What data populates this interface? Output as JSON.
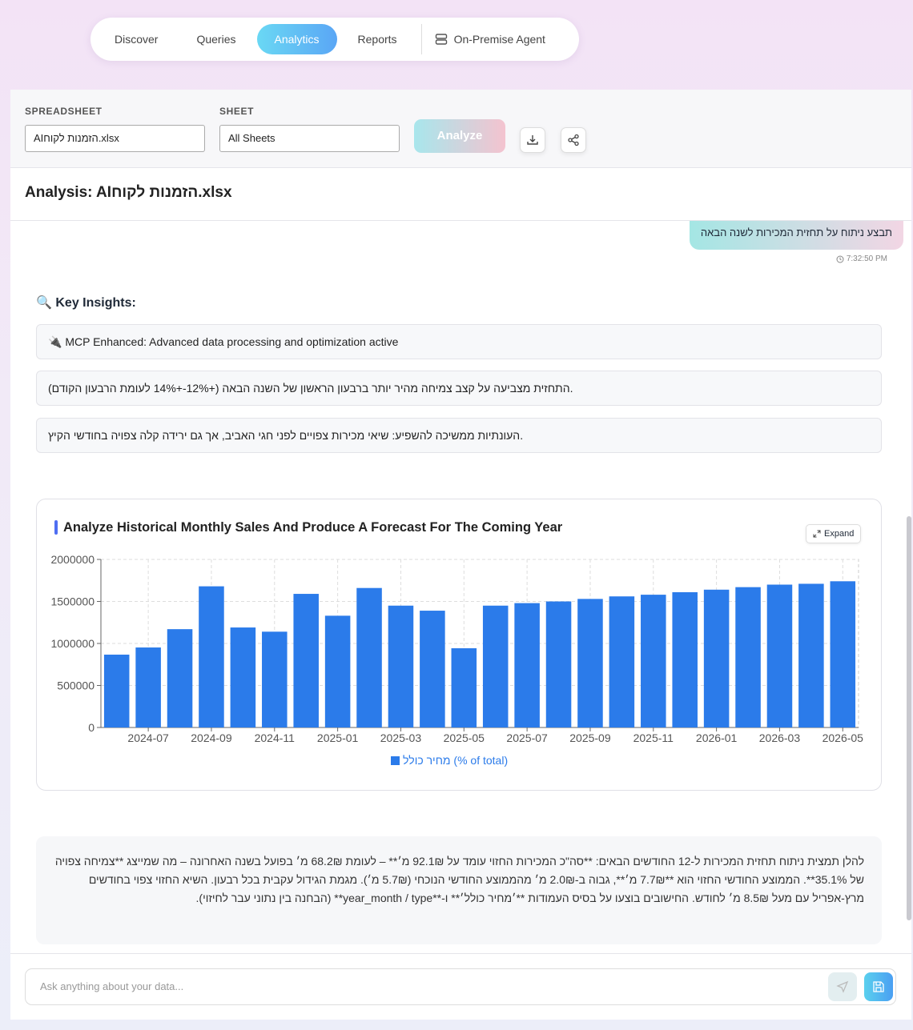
{
  "nav": {
    "items": [
      "Discover",
      "Queries",
      "Analytics",
      "Reports"
    ],
    "agent": "On-Premise Agent"
  },
  "controls": {
    "spreadsheet_label": "SPREADSHEET",
    "spreadsheet_value": "AIהזמנות לקוח.xlsx",
    "sheet_label": "SHEET",
    "sheet_value": "All Sheets",
    "analyze": "Analyze"
  },
  "analysis_title": "Analysis: AIהזמנות לקוח.xlsx",
  "message": {
    "text": "תבצע ניתוח על תחזית המכירות לשנה הבאה",
    "time": "7:32:50 PM"
  },
  "insights": {
    "heading": "🔍 Key Insights:",
    "items": [
      "🔌 MCP Enhanced: Advanced data processing and optimization active",
      "התחזית מצביעה על קצב צמיחה מהיר יותר ברבעון הראשון של השנה הבאה (+12%-+14% לעומת הרבעון הקודם).",
      "העונתיות ממשיכה להשפיע: שיאי מכירות צפויים לפני חגי האביב, אך גם ירידה קלה צפויה בחודשי הקיץ."
    ]
  },
  "expand": "Expand",
  "chart_data": {
    "type": "bar",
    "title": "Analyze Historical Monthly Sales And Produce A Forecast For The Coming Year",
    "categories": [
      null,
      "2024-07",
      null,
      "2024-09",
      null,
      "2024-11",
      null,
      "2025-01",
      null,
      "2025-03",
      null,
      "2025-05",
      null,
      "2025-07",
      null,
      "2025-09",
      null,
      "2025-11",
      null,
      "2026-01",
      null,
      "2026-03",
      null,
      "2026-05"
    ],
    "series": [
      {
        "name": "מחיר כולל (% of total)",
        "color": "#2b7bea",
        "values": [
          867000,
          952000,
          1170000,
          1680000,
          1190000,
          1140000,
          1590000,
          1330000,
          1660000,
          1450000,
          1390000,
          943000,
          1450000,
          1480000,
          1500000,
          1530000,
          1560000,
          1580000,
          1610000,
          1640000,
          1670000,
          1700000,
          1710000,
          1740000
        ]
      }
    ],
    "ylim": [
      0,
      2000000
    ],
    "yticks": [
      0,
      500000,
      1000000,
      1500000,
      2000000
    ],
    "grid": true
  },
  "summary": "להלן תמצית ניתוח תחזית המכירות ל-12 החודשים הבאים: **סה\"כ המכירות החזוי עומד על 92.1₪ מ׳** – לעומת 68.2₪ מ׳ בפועל בשנה האחרונה – מה שמייצג **צמיחה צפויה של 35.1%**. הממוצע החודשי החזוי הוא **7.7₪ מ׳**, גבוה ב-2.0₪ מ׳ מהממוצע החודשי הנוכחי (5.7₪ מ׳). מגמת הגידול עקבית בכל רבעון. השיא החזוי צפוי בחודשים מרץ-אפריל עם מעל 8.5₪ מ׳ לחודש. החישובים בוצעו על בסיס העמודות **׳מחיר כולל׳** ו-**year_month / type** (הבחנה בין נתוני עבר לחיזוי).",
  "input_placeholder": "Ask anything about your data..."
}
